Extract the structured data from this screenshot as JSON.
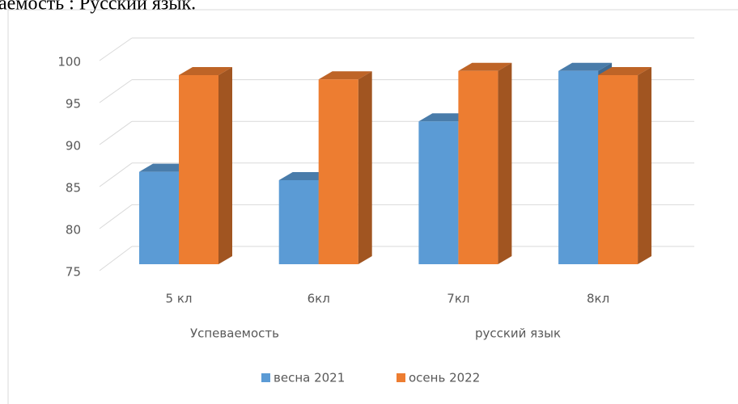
{
  "chart_data": {
    "type": "bar3d",
    "title": "аемость : Русский язык.",
    "categories": [
      "5 кл",
      "6кл",
      "7кл",
      "8кл"
    ],
    "group_labels": [
      "Успеваемость",
      "русский язык"
    ],
    "series": [
      {
        "name": "весна 2021",
        "color": "#5b9bd5",
        "values": [
          86,
          85,
          92,
          98
        ]
      },
      {
        "name": "осень 2022",
        "color": "#ed7d31",
        "values": [
          97.5,
          97,
          98,
          97.5
        ]
      }
    ],
    "ylim": [
      75,
      100
    ],
    "yticks": [
      75,
      80,
      85,
      90,
      95,
      100
    ],
    "grid": true,
    "legend": "bottom"
  }
}
